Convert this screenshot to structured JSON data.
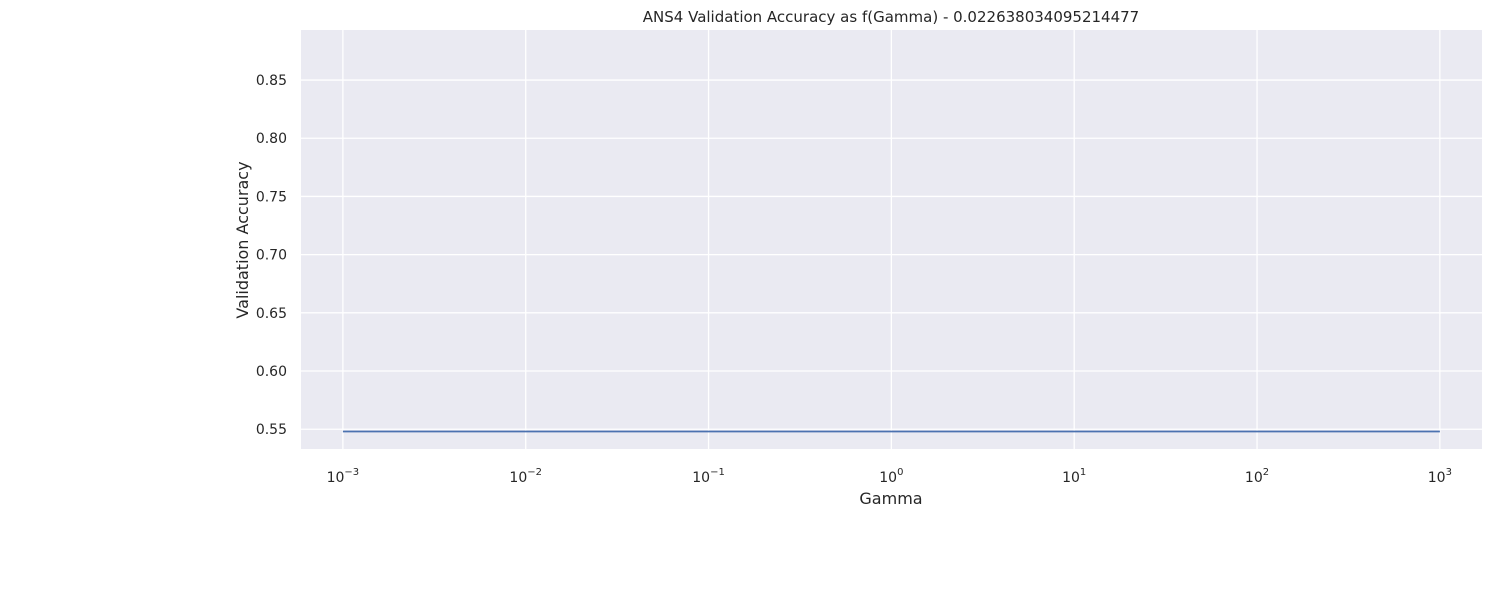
{
  "chart_data": {
    "type": "line",
    "title": "ANS4 Validation Accuracy as f(Gamma) - 0.022638034095214477",
    "xlabel": "Gamma",
    "ylabel": "Validation Accuracy",
    "xscale": "log",
    "xlim": [
      0.00059,
      1700
    ],
    "ylim": [
      0.533,
      0.893
    ],
    "x_ticks": [
      {
        "base": "10",
        "exp": "−3",
        "value": 0.001
      },
      {
        "base": "10",
        "exp": "−2",
        "value": 0.01
      },
      {
        "base": "10",
        "exp": "−1",
        "value": 0.1
      },
      {
        "base": "10",
        "exp": "0",
        "value": 1
      },
      {
        "base": "10",
        "exp": "1",
        "value": 10
      },
      {
        "base": "10",
        "exp": "2",
        "value": 100
      },
      {
        "base": "10",
        "exp": "3",
        "value": 1000
      }
    ],
    "y_ticks": [
      "0.55",
      "0.60",
      "0.65",
      "0.70",
      "0.75",
      "0.80",
      "0.85"
    ],
    "grid": true,
    "colors": {
      "background": "#eaeaf2",
      "grid": "#ffffff",
      "line": "#4c72b0"
    },
    "series": [
      {
        "x": [
          0.001,
          0.001624,
          0.002637,
          0.004281,
          0.006952,
          0.01129,
          0.01833,
          0.02976,
          0.04833,
          0.07848,
          0.1274,
          0.2069,
          0.336,
          0.5456,
          0.886,
          1.438,
          2.336,
          3.793,
          6.158,
          10,
          16.24,
          26.37,
          42.81,
          69.52,
          112.9,
          183.3,
          297.6,
          483.3,
          784.8,
          1000
        ],
        "y": [
          0.548,
          0.548,
          0.548,
          0.548,
          0.548,
          0.548,
          0.548,
          0.548,
          0.548,
          0.548,
          0.548,
          0.548,
          0.548,
          0.548,
          0.548,
          0.548,
          0.548,
          0.548,
          0.548,
          0.548,
          0.548,
          0.548,
          0.548,
          0.548,
          0.548,
          0.548,
          0.548,
          0.548,
          0.548,
          0.548
        ]
      }
    ]
  }
}
